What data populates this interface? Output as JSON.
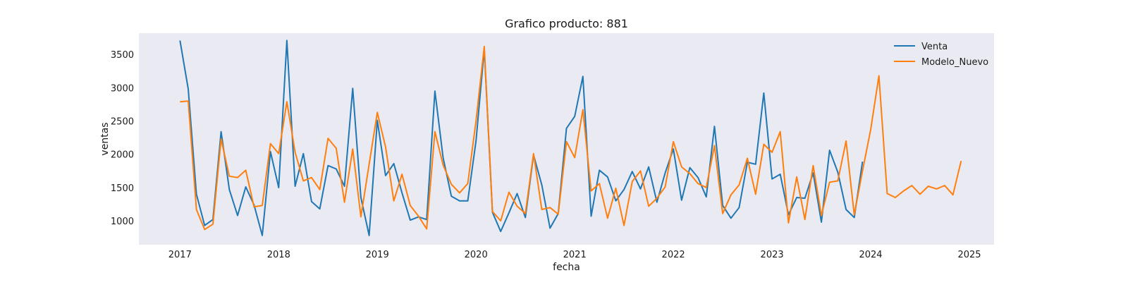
{
  "chart_data": {
    "type": "line",
    "title": "Grafico producto: 881",
    "xlabel": "fecha",
    "ylabel": "ventas",
    "x_ticks": [
      "2017",
      "2018",
      "2019",
      "2020",
      "2021",
      "2022",
      "2023",
      "2024",
      "2025"
    ],
    "y_ticks": [
      "1000",
      "1500",
      "2000",
      "2500",
      "3000",
      "3500"
    ],
    "xlim": [
      "2016-08",
      "2025-04"
    ],
    "ylim": [
      640,
      3820
    ],
    "grid": false,
    "legend_position": "top-right",
    "colors": {
      "plot_background": "#EAEAF2",
      "venta": "#1f77b4",
      "modelo_nuevo": "#ff7f0e"
    },
    "series": [
      {
        "name": "Venta",
        "x": [
          "2017-01",
          "2017-02",
          "2017-03",
          "2017-04",
          "2017-05",
          "2017-06",
          "2017-07",
          "2017-08",
          "2017-09",
          "2017-10",
          "2017-11",
          "2017-12",
          "2018-01",
          "2018-02",
          "2018-03",
          "2018-04",
          "2018-05",
          "2018-06",
          "2018-07",
          "2018-08",
          "2018-09",
          "2018-10",
          "2018-11",
          "2018-12",
          "2019-01",
          "2019-02",
          "2019-03",
          "2019-04",
          "2019-05",
          "2019-06",
          "2019-07",
          "2019-08",
          "2019-09",
          "2019-10",
          "2019-11",
          "2019-12",
          "2020-01",
          "2020-02",
          "2020-03",
          "2020-04",
          "2020-05",
          "2020-06",
          "2020-07",
          "2020-08",
          "2020-09",
          "2020-10",
          "2020-11",
          "2020-12",
          "2021-01",
          "2021-02",
          "2021-03",
          "2021-04",
          "2021-05",
          "2021-06",
          "2021-07",
          "2021-08",
          "2021-09",
          "2021-10",
          "2021-11",
          "2021-12",
          "2022-01",
          "2022-02",
          "2022-03",
          "2022-04",
          "2022-05",
          "2022-06",
          "2022-07",
          "2022-08",
          "2022-09",
          "2022-10",
          "2022-11",
          "2022-12",
          "2023-01",
          "2023-02",
          "2023-03",
          "2023-04",
          "2023-05",
          "2023-06",
          "2023-07",
          "2023-08",
          "2023-09",
          "2023-10",
          "2023-11",
          "2023-12"
        ],
        "values": [
          3710,
          2980,
          1400,
          930,
          1020,
          2340,
          1470,
          1080,
          1510,
          1240,
          780,
          2040,
          1500,
          3710,
          1520,
          2010,
          1290,
          1180,
          1830,
          1780,
          1520,
          2990,
          1350,
          780,
          2510,
          1680,
          1860,
          1420,
          1010,
          1060,
          1020,
          2950,
          1950,
          1370,
          1300,
          1300,
          2200,
          3580,
          1130,
          840,
          1120,
          1410,
          1050,
          1990,
          1540,
          890,
          1110,
          2390,
          2570,
          3170,
          1070,
          1760,
          1660,
          1300,
          1470,
          1740,
          1480,
          1810,
          1280,
          1720,
          2080,
          1310,
          1800,
          1650,
          1360,
          2420,
          1230,
          1040,
          1200,
          1880,
          1850,
          2920,
          1630,
          1700,
          1090,
          1350,
          1340,
          1720,
          980,
          2060,
          1730,
          1170,
          1050,
          1890
        ]
      },
      {
        "name": "Modelo_Nuevo",
        "x": [
          "2017-01",
          "2017-02",
          "2017-03",
          "2017-04",
          "2017-05",
          "2017-06",
          "2017-07",
          "2017-08",
          "2017-09",
          "2017-10",
          "2017-11",
          "2017-12",
          "2018-01",
          "2018-02",
          "2018-03",
          "2018-04",
          "2018-05",
          "2018-06",
          "2018-07",
          "2018-08",
          "2018-09",
          "2018-10",
          "2018-11",
          "2018-12",
          "2019-01",
          "2019-02",
          "2019-03",
          "2019-04",
          "2019-05",
          "2019-06",
          "2019-07",
          "2019-08",
          "2019-09",
          "2019-10",
          "2019-11",
          "2019-12",
          "2020-01",
          "2020-02",
          "2020-03",
          "2020-04",
          "2020-05",
          "2020-06",
          "2020-07",
          "2020-08",
          "2020-09",
          "2020-10",
          "2020-11",
          "2020-12",
          "2021-01",
          "2021-02",
          "2021-03",
          "2021-04",
          "2021-05",
          "2021-06",
          "2021-07",
          "2021-08",
          "2021-09",
          "2021-10",
          "2021-11",
          "2021-12",
          "2022-01",
          "2022-02",
          "2022-03",
          "2022-04",
          "2022-05",
          "2022-06",
          "2022-07",
          "2022-08",
          "2022-09",
          "2022-10",
          "2022-11",
          "2022-12",
          "2023-01",
          "2023-02",
          "2023-03",
          "2023-04",
          "2023-05",
          "2023-06",
          "2023-07",
          "2023-08",
          "2023-09",
          "2023-10",
          "2023-11",
          "2023-12",
          "2024-01",
          "2024-02",
          "2024-03",
          "2024-04",
          "2024-05",
          "2024-06",
          "2024-07",
          "2024-08",
          "2024-09",
          "2024-10",
          "2024-11",
          "2024-12"
        ],
        "values": [
          2790,
          2800,
          1170,
          870,
          950,
          2230,
          1670,
          1650,
          1760,
          1210,
          1230,
          2160,
          2010,
          2790,
          2030,
          1600,
          1650,
          1470,
          2240,
          2090,
          1280,
          2080,
          1060,
          1850,
          2630,
          2110,
          1300,
          1700,
          1230,
          1070,
          880,
          2340,
          1840,
          1550,
          1420,
          1560,
          2500,
          3620,
          1140,
          1000,
          1430,
          1220,
          1110,
          2010,
          1170,
          1200,
          1100,
          2190,
          1950,
          2670,
          1450,
          1560,
          1040,
          1490,
          930,
          1590,
          1750,
          1220,
          1340,
          1510,
          2190,
          1810,
          1710,
          1560,
          1500,
          2130,
          1110,
          1390,
          1540,
          1940,
          1400,
          2150,
          2030,
          2340,
          970,
          1660,
          1020,
          1830,
          1080,
          1580,
          1600,
          2200,
          1090,
          1750,
          2370,
          3180,
          1410,
          1350,
          1450,
          1530,
          1400,
          1520,
          1480,
          1530,
          1390,
          1900
        ]
      }
    ]
  }
}
